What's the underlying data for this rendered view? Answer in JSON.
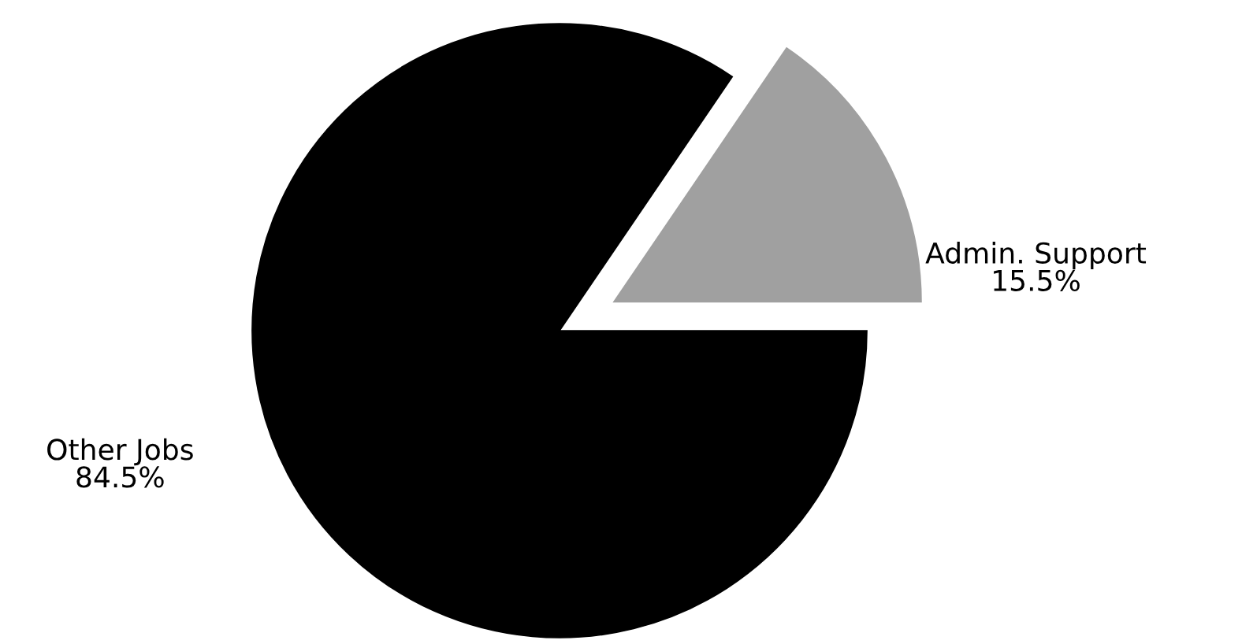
{
  "chart_data": {
    "type": "pie",
    "categories": [
      "Admin. Support",
      "Other Jobs"
    ],
    "values": [
      15.5,
      84.5
    ],
    "value_labels": [
      "15.5%",
      "84.5%"
    ],
    "colors": [
      "#a0a0a0",
      "#000000"
    ]
  }
}
